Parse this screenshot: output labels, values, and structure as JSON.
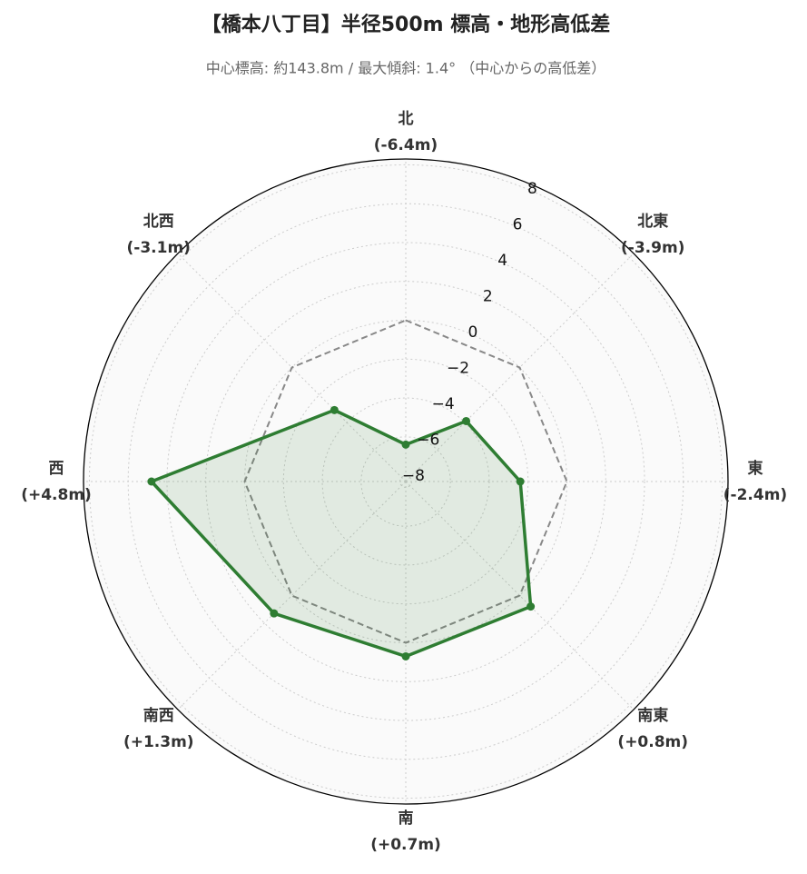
{
  "chart_data": {
    "type": "radar",
    "title": "【橋本八丁目】半径500m 標高・地形高低差",
    "subtitle": "中心標高: 約143.8m / 最大傾斜: 1.4° （中心からの高低差）",
    "categories": [
      "北",
      "北東",
      "東",
      "南東",
      "南",
      "南西",
      "西",
      "北西"
    ],
    "series": [
      {
        "color": "#2e7d32",
        "values": [
          -6.4,
          -3.9,
          -2.4,
          0.8,
          0.7,
          1.3,
          4.8,
          -3.1
        ],
        "value_labels": [
          "(-6.4m)",
          "(-3.9m)",
          "(-2.4m)",
          "(+0.8m)",
          "(+0.7m)",
          "(+1.3m)",
          "(+4.8m)",
          "(-3.1m)"
        ]
      }
    ],
    "reference": 0,
    "rlim": [
      -8.3,
      8.3
    ],
    "rticks": [
      {
        "value": -8,
        "label": "−8"
      },
      {
        "value": -6,
        "label": "−6"
      },
      {
        "value": -4,
        "label": "−4"
      },
      {
        "value": -2,
        "label": "−2"
      },
      0,
      2,
      4,
      6,
      8
    ],
    "grid": true
  }
}
